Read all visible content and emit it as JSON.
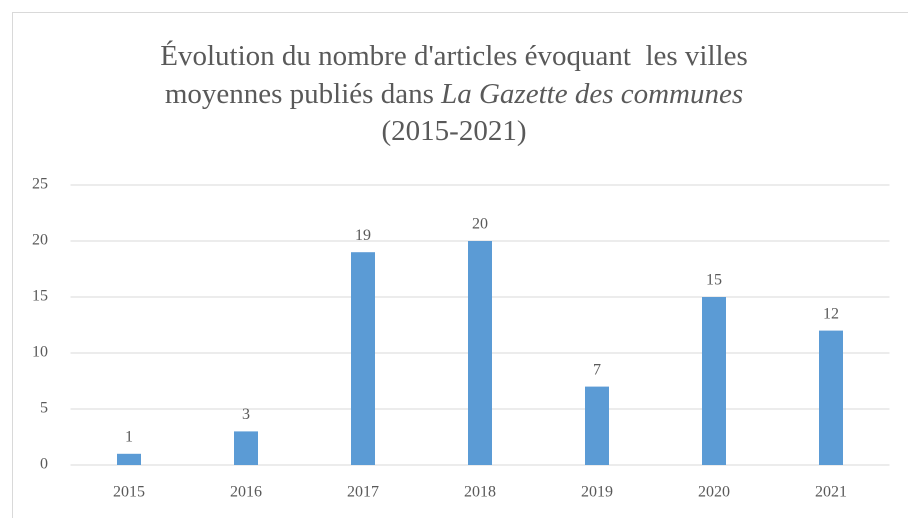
{
  "chart_data": {
    "type": "bar",
    "title": [
      [
        {
          "text": "Évolution du nombre d'articles évoquant  les villes"
        }
      ],
      [
        {
          "text": "moyennes publiés dans "
        },
        {
          "text": "La Gazette des communes",
          "italic": true
        }
      ],
      [
        {
          "text": "(2015-2021)"
        }
      ]
    ],
    "categories": [
      "2015",
      "2016",
      "2017",
      "2018",
      "2019",
      "2020",
      "2021"
    ],
    "values": [
      1,
      3,
      19,
      20,
      7,
      15,
      12
    ],
    "color": "#5b9bd5",
    "ylim": [
      0,
      25
    ],
    "yticks": [
      0,
      5,
      10,
      15,
      20,
      25
    ],
    "grid": true
  }
}
